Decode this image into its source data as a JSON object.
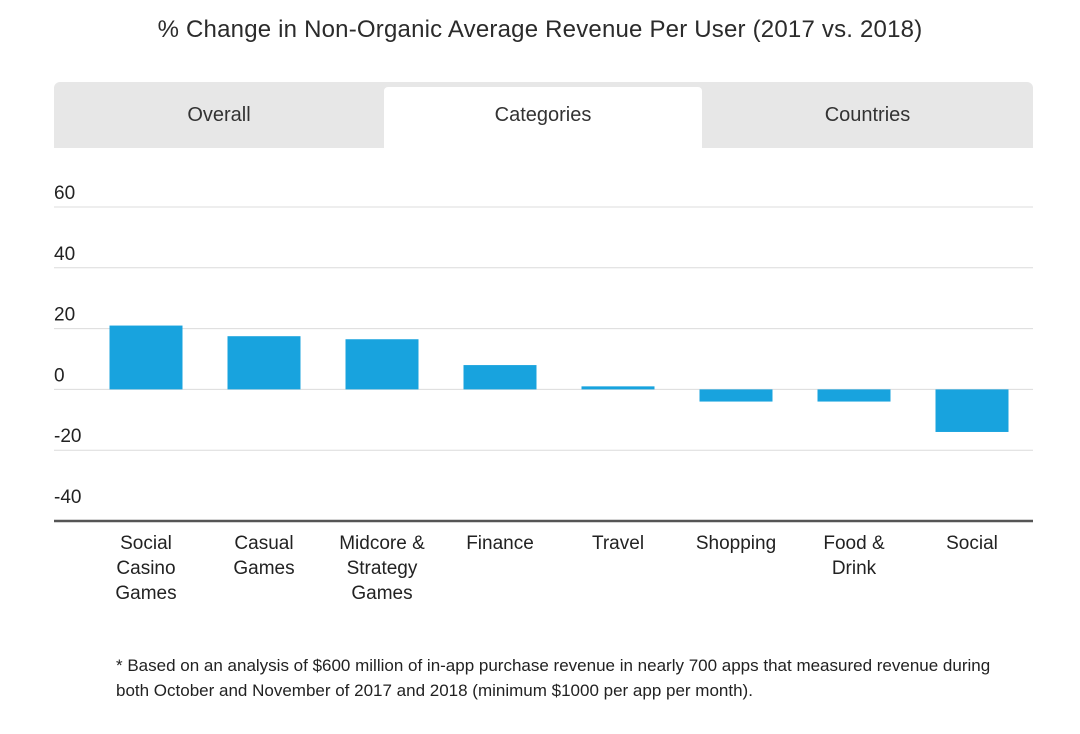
{
  "tabs": [
    {
      "label": "Overall",
      "active": false
    },
    {
      "label": "Categories",
      "active": true
    },
    {
      "label": "Countries",
      "active": false
    }
  ],
  "colors": {
    "bar": "#18a3de",
    "grid": "#dcdcdc",
    "axis": "#555555",
    "tab_bg": "#e7e7e7",
    "tab_active_bg": "#ffffff"
  },
  "chart_data": {
    "type": "bar",
    "title": "% Change in Non-Organic Average Revenue Per User (2017 vs. 2018)",
    "categories": [
      "Social Casino Games",
      "Casual Games",
      "Midcore & Strategy Games",
      "Finance",
      "Travel",
      "Shopping",
      "Food & Drink",
      "Social"
    ],
    "category_lines": [
      [
        "Social",
        "Casino",
        "Games"
      ],
      [
        "Casual",
        "Games"
      ],
      [
        "Midcore &",
        "Strategy",
        "Games"
      ],
      [
        "Finance"
      ],
      [
        "Travel"
      ],
      [
        "Shopping"
      ],
      [
        "Food &",
        "Drink"
      ],
      [
        "Social"
      ]
    ],
    "values": [
      21,
      17.5,
      16.5,
      8,
      1,
      -4,
      -4,
      -14
    ],
    "yticks": [
      60,
      40,
      20,
      0,
      -20,
      -40
    ],
    "ylim": [
      -40,
      60
    ],
    "grid": true,
    "legend": "none",
    "xlabel": "",
    "ylabel": ""
  },
  "footnote": "* Based on an analysis of $600 million of in-app purchase revenue in nearly 700 apps that measured revenue during both October and November of 2017 and 2018 (minimum $1000 per app per month)."
}
